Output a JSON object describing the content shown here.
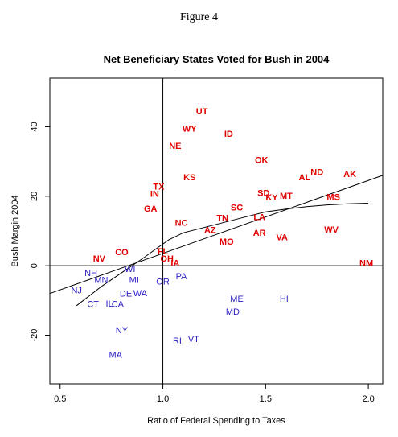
{
  "figure_label": "Figure 4",
  "chart_data": {
    "type": "scatter",
    "title": "Net Beneficiary States Voted for Bush in 2004",
    "xlabel": "Ratio of Federal Spending to Taxes",
    "ylabel": "Bush Margin 2004",
    "xlim": [
      0.45,
      2.07
    ],
    "ylim": [
      -34,
      54
    ],
    "xticks": [
      0.5,
      1.0,
      1.5,
      2.0
    ],
    "xtick_labels": [
      "0.5",
      "1.0",
      "1.5",
      "2.0"
    ],
    "yticks": [
      -20,
      0,
      20,
      40
    ],
    "ytick_labels": [
      "-20",
      "0",
      "20",
      "40"
    ],
    "reference_lines": {
      "x": 1.0,
      "y": 0
    },
    "colors": {
      "bush": "#e00000",
      "kerry": "#2b1fc0"
    },
    "points": [
      {
        "label": "UT",
        "x": 1.19,
        "y": 44.5,
        "party": "bush"
      },
      {
        "label": "WY",
        "x": 1.13,
        "y": 39.5,
        "party": "bush"
      },
      {
        "label": "ID",
        "x": 1.32,
        "y": 38.0,
        "party": "bush"
      },
      {
        "label": "NE",
        "x": 1.06,
        "y": 34.5,
        "party": "bush"
      },
      {
        "label": "OK",
        "x": 1.48,
        "y": 30.5,
        "party": "bush"
      },
      {
        "label": "AL",
        "x": 1.69,
        "y": 25.5,
        "party": "bush"
      },
      {
        "label": "ND",
        "x": 1.75,
        "y": 27.0,
        "party": "bush"
      },
      {
        "label": "AK",
        "x": 1.91,
        "y": 26.5,
        "party": "bush"
      },
      {
        "label": "KS",
        "x": 1.13,
        "y": 25.5,
        "party": "bush"
      },
      {
        "label": "TX",
        "x": 0.98,
        "y": 22.8,
        "party": "bush"
      },
      {
        "label": "IN",
        "x": 0.96,
        "y": 20.8,
        "party": "bush"
      },
      {
        "label": "SD",
        "x": 1.49,
        "y": 21.0,
        "party": "bush"
      },
      {
        "label": "KY",
        "x": 1.53,
        "y": 19.7,
        "party": "bush"
      },
      {
        "label": "MT",
        "x": 1.6,
        "y": 20.2,
        "party": "bush"
      },
      {
        "label": "MS",
        "x": 1.83,
        "y": 19.8,
        "party": "bush"
      },
      {
        "label": "GA",
        "x": 0.94,
        "y": 16.5,
        "party": "bush"
      },
      {
        "label": "SC",
        "x": 1.36,
        "y": 16.8,
        "party": "bush"
      },
      {
        "label": "TN",
        "x": 1.29,
        "y": 13.8,
        "party": "bush"
      },
      {
        "label": "LA",
        "x": 1.47,
        "y": 14.0,
        "party": "bush"
      },
      {
        "label": "NC",
        "x": 1.09,
        "y": 12.4,
        "party": "bush"
      },
      {
        "label": "AZ",
        "x": 1.23,
        "y": 10.3,
        "party": "bush"
      },
      {
        "label": "AR",
        "x": 1.47,
        "y": 9.5,
        "party": "bush"
      },
      {
        "label": "VA",
        "x": 1.58,
        "y": 8.3,
        "party": "bush"
      },
      {
        "label": "WV",
        "x": 1.82,
        "y": 10.5,
        "party": "bush"
      },
      {
        "label": "MO",
        "x": 1.31,
        "y": 7.0,
        "party": "bush"
      },
      {
        "label": "CO",
        "x": 0.8,
        "y": 4.0,
        "party": "bush"
      },
      {
        "label": "NV",
        "x": 0.69,
        "y": 2.1,
        "party": "bush"
      },
      {
        "label": "FL",
        "x": 1.0,
        "y": 4.2,
        "party": "bush"
      },
      {
        "label": "OH",
        "x": 1.02,
        "y": 2.1,
        "party": "bush"
      },
      {
        "label": "IA",
        "x": 1.06,
        "y": 0.8,
        "party": "bush"
      },
      {
        "label": "NM",
        "x": 1.99,
        "y": 0.8,
        "party": "bush"
      },
      {
        "label": "WI",
        "x": 0.84,
        "y": -0.9,
        "party": "kerry"
      },
      {
        "label": "NH",
        "x": 0.65,
        "y": -2.0,
        "party": "kerry"
      },
      {
        "label": "MN",
        "x": 0.7,
        "y": -4.0,
        "party": "kerry"
      },
      {
        "label": "MI",
        "x": 0.86,
        "y": -4.0,
        "party": "kerry"
      },
      {
        "label": "OR",
        "x": 1.0,
        "y": -4.5,
        "party": "kerry"
      },
      {
        "label": "PA",
        "x": 1.09,
        "y": -3.0,
        "party": "kerry"
      },
      {
        "label": "NJ",
        "x": 0.58,
        "y": -7.0,
        "party": "kerry"
      },
      {
        "label": "DE",
        "x": 0.82,
        "y": -8.0,
        "party": "kerry"
      },
      {
        "label": "WA",
        "x": 0.89,
        "y": -7.8,
        "party": "kerry"
      },
      {
        "label": "CT",
        "x": 0.66,
        "y": -11.0,
        "party": "kerry"
      },
      {
        "label": "IL",
        "x": 0.74,
        "y": -10.8,
        "party": "kerry"
      },
      {
        "label": "CA",
        "x": 0.78,
        "y": -11.0,
        "party": "kerry"
      },
      {
        "label": "ME",
        "x": 1.36,
        "y": -9.5,
        "party": "kerry"
      },
      {
        "label": "HI",
        "x": 1.59,
        "y": -9.5,
        "party": "kerry"
      },
      {
        "label": "MD",
        "x": 1.34,
        "y": -13.2,
        "party": "kerry"
      },
      {
        "label": "NY",
        "x": 0.8,
        "y": -18.5,
        "party": "kerry"
      },
      {
        "label": "RI",
        "x": 1.07,
        "y": -21.5,
        "party": "kerry"
      },
      {
        "label": "VT",
        "x": 1.15,
        "y": -21.0,
        "party": "kerry"
      },
      {
        "label": "MA",
        "x": 0.77,
        "y": -25.5,
        "party": "kerry"
      }
    ],
    "fit_lines": [
      {
        "kind": "linear",
        "x": [
          0.45,
          2.07
        ],
        "y": [
          -8.0,
          26.0
        ]
      },
      {
        "kind": "smooth",
        "x": [
          0.58,
          0.7,
          0.8,
          0.9,
          0.97,
          1.03,
          1.1,
          1.2,
          1.3,
          1.4,
          1.5,
          1.6,
          1.7,
          1.8,
          1.9,
          2.0
        ],
        "y": [
          -11.5,
          -6.0,
          -2.0,
          2.0,
          5.0,
          7.5,
          9.5,
          11.0,
          12.5,
          14.0,
          15.5,
          16.3,
          17.0,
          17.5,
          17.8,
          18.0
        ]
      }
    ]
  }
}
